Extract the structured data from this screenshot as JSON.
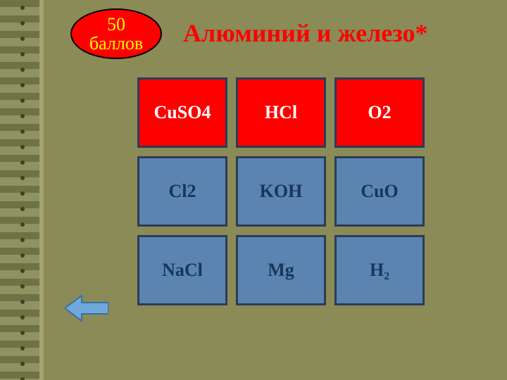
{
  "colors": {
    "background": "#8a8b57",
    "badge_fill": "#ff0000",
    "badge_stroke": "#000000",
    "badge_text": "#ffff00",
    "title": "#ff0000",
    "cell_red_fill": "#ff0000",
    "cell_red_text": "#ffffff",
    "cell_blue_fill": "#5b84b1",
    "cell_blue_text": "#17365d",
    "cell_border": "#2b3c58",
    "arrow_fill": "#6fa8dc",
    "arrow_stroke": "#3b6fa0"
  },
  "badge": {
    "line1": "50",
    "line2": "баллов"
  },
  "title": "Алюминий и железо*",
  "grid": {
    "cols": 3,
    "rows": [
      [
        {
          "label": "CuSO4",
          "variant": "red"
        },
        {
          "label": "HCl",
          "variant": "red"
        },
        {
          "label": "O2",
          "variant": "red"
        }
      ],
      [
        {
          "label": "Cl2",
          "variant": "blue"
        },
        {
          "label": "KOH",
          "variant": "blue"
        },
        {
          "label": "CuO",
          "variant": "blue"
        }
      ],
      [
        {
          "label": "NaCl",
          "variant": "blue"
        },
        {
          "label": "Mg",
          "variant": "blue"
        },
        {
          "label": "H₂",
          "variant": "blue"
        }
      ]
    ]
  }
}
